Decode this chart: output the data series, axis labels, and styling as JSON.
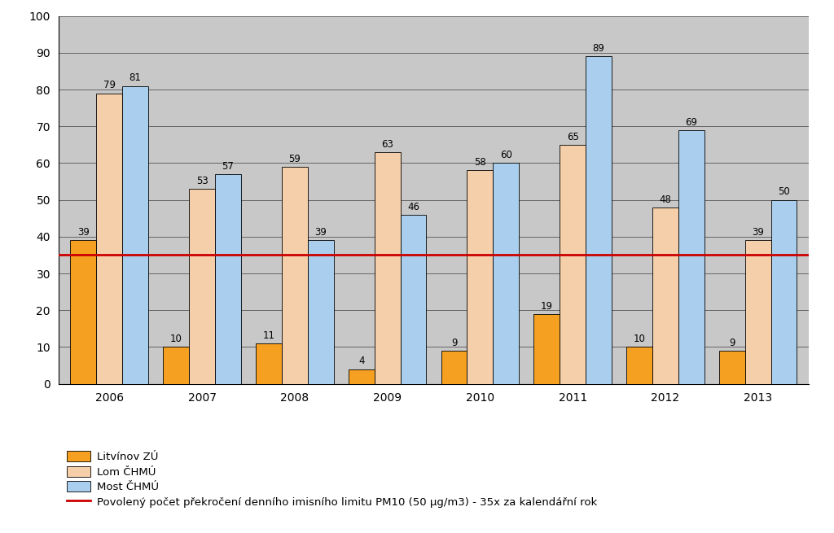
{
  "years": [
    "2006",
    "2007",
    "2008",
    "2009",
    "2010",
    "2011",
    "2012",
    "2013"
  ],
  "litvinov": [
    39,
    10,
    11,
    4,
    9,
    19,
    10,
    9
  ],
  "lom": [
    79,
    53,
    59,
    63,
    58,
    65,
    48,
    39
  ],
  "most": [
    81,
    57,
    39,
    46,
    60,
    89,
    69,
    50
  ],
  "color_litvinov": "#f5a020",
  "color_lom": "#f5cfaa",
  "color_most": "#aacfee",
  "limit_value": 35,
  "limit_color": "#cc0000",
  "ylim": [
    0,
    100
  ],
  "yticks": [
    0,
    10,
    20,
    30,
    40,
    50,
    60,
    70,
    80,
    90,
    100
  ],
  "bar_width": 0.28,
  "background_color": "#c8c8c8",
  "legend_litvinov": "Litvínov ZÚ",
  "legend_lom": "Lom ČHMÚ",
  "legend_most": "Most ČHMÚ",
  "legend_limit": "Povolený počet překročení denního imisního limitu PM10 (50 μg/m3) - 35x za kalendářní rok",
  "label_fontsize": 8.5,
  "tick_fontsize": 10,
  "legend_fontsize": 9.5
}
